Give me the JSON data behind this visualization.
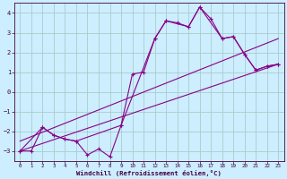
{
  "xlabel": "Windchill (Refroidissement éolien,°C)",
  "background_color": "#cceeff",
  "grid_color": "#aacccc",
  "line_color": "#880088",
  "xlim": [
    -0.5,
    23.5
  ],
  "ylim": [
    -3.5,
    4.5
  ],
  "yticks": [
    -3,
    -2,
    -1,
    0,
    1,
    2,
    3,
    4
  ],
  "xticks": [
    0,
    1,
    2,
    3,
    4,
    5,
    6,
    7,
    8,
    9,
    10,
    11,
    12,
    13,
    14,
    15,
    16,
    17,
    18,
    19,
    20,
    21,
    22,
    23
  ],
  "series1_x": [
    0,
    1,
    2,
    3,
    4,
    5,
    6,
    7,
    8,
    9,
    10,
    11,
    12,
    13,
    14,
    15,
    16,
    17,
    18,
    19,
    20,
    21,
    22,
    23
  ],
  "series1_y": [
    -3.0,
    -3.0,
    -1.8,
    -2.2,
    -2.4,
    -2.5,
    -3.2,
    -2.9,
    -3.3,
    -1.7,
    0.9,
    1.0,
    2.7,
    3.6,
    3.5,
    3.3,
    4.3,
    3.7,
    2.7,
    2.8,
    1.9,
    1.1,
    1.3,
    1.4
  ],
  "series2_x": [
    0,
    2,
    3,
    4,
    5,
    9,
    12,
    13,
    15,
    16,
    18,
    19,
    20,
    21,
    22,
    23
  ],
  "series2_y": [
    -3.0,
    -1.8,
    -2.2,
    -2.4,
    -2.5,
    -1.7,
    2.7,
    3.6,
    3.3,
    4.3,
    2.7,
    2.8,
    1.9,
    1.1,
    1.3,
    1.4
  ],
  "series3_x": [
    0,
    23
  ],
  "series3_y": [
    -3.0,
    1.4
  ],
  "series4_x": [
    0,
    23
  ],
  "series4_y": [
    -2.5,
    2.7
  ]
}
